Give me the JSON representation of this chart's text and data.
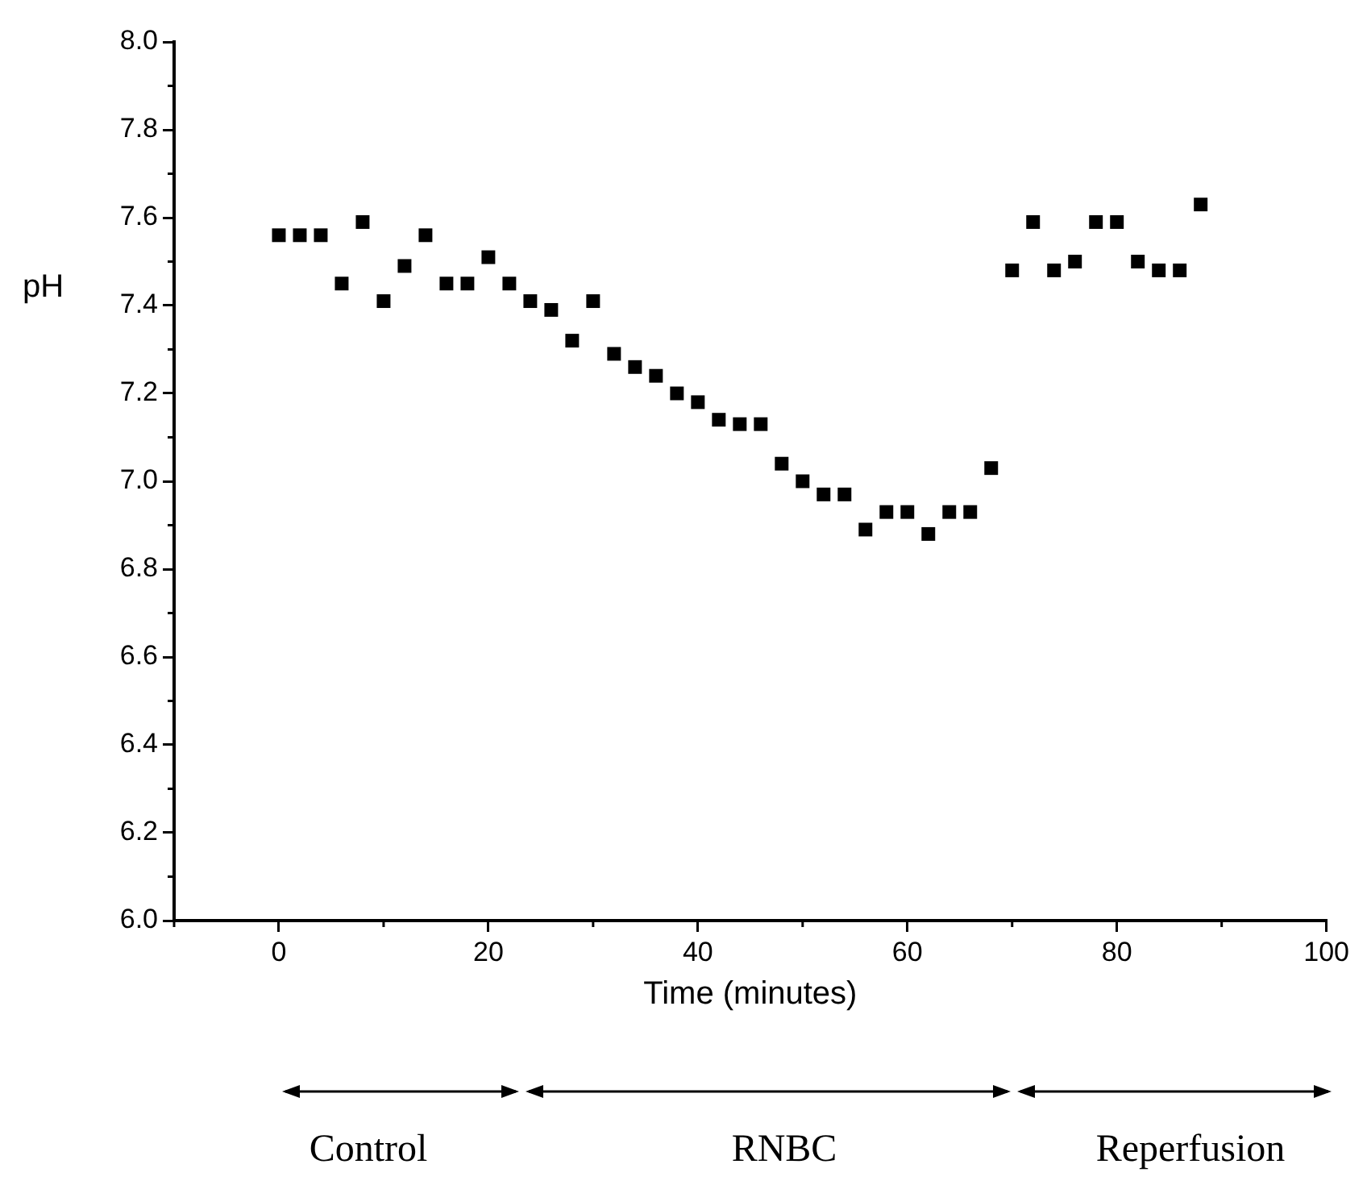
{
  "chart_data": {
    "type": "scatter",
    "xlabel": "Time (minutes)",
    "ylabel": "pH",
    "marker": "square",
    "legend": false,
    "x": [
      0,
      2,
      4,
      6,
      8,
      10,
      12,
      14,
      16,
      18,
      20,
      22,
      24,
      26,
      28,
      30,
      32,
      34,
      36,
      38,
      40,
      42,
      44,
      46,
      48,
      50,
      52,
      54,
      56,
      58,
      60,
      62,
      64,
      66,
      68,
      70,
      72,
      74,
      76,
      78,
      80,
      82,
      84,
      86,
      88
    ],
    "series": [
      {
        "color": "#000000",
        "values": [
          7.56,
          7.56,
          7.56,
          7.45,
          7.59,
          7.41,
          7.49,
          7.56,
          7.45,
          7.45,
          7.51,
          7.45,
          7.41,
          7.39,
          7.32,
          7.41,
          7.29,
          7.26,
          7.24,
          7.2,
          7.18,
          7.14,
          7.13,
          7.13,
          7.04,
          7.0,
          6.97,
          6.97,
          6.89,
          6.93,
          6.93,
          6.88,
          6.93,
          6.93,
          7.03,
          7.48,
          7.59,
          7.48,
          7.5,
          7.59,
          7.59,
          7.5,
          7.48,
          7.48,
          7.63
        ]
      }
    ],
    "xlim": [
      -10,
      100
    ],
    "xticks": [
      0,
      20,
      40,
      60,
      80,
      100
    ],
    "ylim": [
      6.0,
      8.0
    ],
    "yticks": [
      {
        "value": 6.0,
        "label": "6.0"
      },
      {
        "value": 6.2,
        "label": "6.2"
      },
      {
        "value": 6.4,
        "label": "6.4"
      },
      {
        "value": 6.6,
        "label": "6.6"
      },
      {
        "value": 6.8,
        "label": "6.8"
      },
      {
        "value": 7.0,
        "label": "7.0"
      },
      {
        "value": 7.2,
        "label": "7.2"
      },
      {
        "value": 7.4,
        "label": "7.4"
      },
      {
        "value": 7.6,
        "label": "7.6"
      },
      {
        "value": 7.8,
        "label": "7.8"
      },
      {
        "value": 8.0,
        "label": "8.0"
      }
    ],
    "annotations": [
      "Control",
      "RNBC",
      "Reperfusion"
    ]
  }
}
